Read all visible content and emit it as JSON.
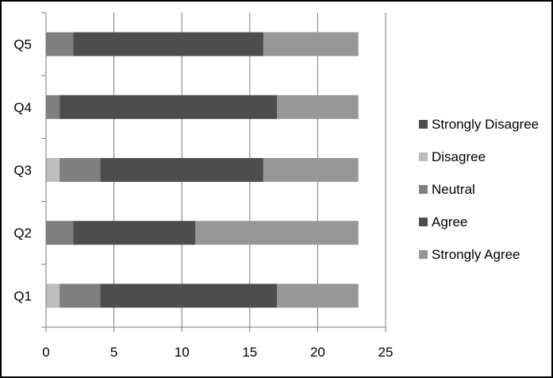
{
  "chart_data": {
    "type": "bar",
    "orientation": "horizontal",
    "stacked": true,
    "categories": [
      "Q1",
      "Q2",
      "Q3",
      "Q4",
      "Q5"
    ],
    "series": [
      {
        "name": "Strongly Disagree",
        "values": [
          0,
          0,
          0,
          0,
          0
        ],
        "color": "#4d4d4d"
      },
      {
        "name": "Disagree",
        "values": [
          1,
          0,
          1,
          0,
          0
        ],
        "color": "#bdbdbd"
      },
      {
        "name": "Neutral",
        "values": [
          3,
          2,
          3,
          1,
          2
        ],
        "color": "#7f7f7f"
      },
      {
        "name": "Agree",
        "values": [
          13,
          9,
          12,
          16,
          14
        ],
        "color": "#4d4d4d"
      },
      {
        "name": "Strongly Agree",
        "values": [
          6,
          12,
          7,
          6,
          7
        ],
        "color": "#979797"
      }
    ],
    "xlim": [
      0,
      25
    ],
    "xticks": [
      "0",
      "5",
      "10",
      "15",
      "20",
      "25"
    ],
    "grid": "vertical",
    "legend": "right"
  }
}
